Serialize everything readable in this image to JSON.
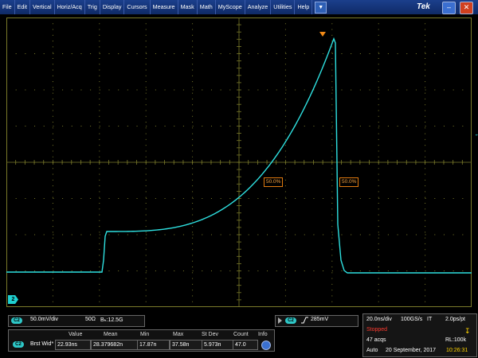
{
  "menu": {
    "items": [
      "File",
      "Edit",
      "Vertical",
      "Horiz/Acq",
      "Trig",
      "Display",
      "Cursors",
      "Measure",
      "Mask",
      "Math",
      "MyScope",
      "Analyze",
      "Utilities",
      "Help"
    ],
    "dropdown_icon": "chevron-down-icon"
  },
  "brand": "Tek",
  "window_buttons": {
    "minimize": "–",
    "close": "✕"
  },
  "waveform": {
    "color": "#2ee0e0",
    "grid_color": "#7a7a2a",
    "measure_tags": [
      "50.0%",
      "50.0%"
    ],
    "ref_arrow": "←",
    "channel_marker": "2"
  },
  "channel_settings": {
    "badge": "C2",
    "scale": "50.0mV/div",
    "impedance": "50Ω",
    "bandwidth": "Bₕ:12.5G"
  },
  "trigger": {
    "badge": "C2",
    "slope_icon": "rising-edge-icon",
    "level": "285mV"
  },
  "measurements": {
    "headers": [
      "Value",
      "Mean",
      "Min",
      "Max",
      "St Dev",
      "Count",
      "Info"
    ],
    "rows": [
      {
        "badge": "C2",
        "name": "Brst Wid*",
        "value": "22.93ns",
        "mean": "28.379682n",
        "min": "17.87n",
        "max": "37.58n",
        "stdev": "5.973n",
        "count": "47.0"
      }
    ]
  },
  "acquisition": {
    "timebase": "20.0ns/div",
    "sample_rate": "100GS/s",
    "mode": "IT",
    "resolution": "2.0ps/pt",
    "state": "Stopped",
    "acqs": "47 acqs",
    "record_length": "RL:100k",
    "trigger_mode": "Auto",
    "date": "20 September, 2017",
    "time": "10:26:31"
  },
  "colors": {
    "accent": "#2ee0e0",
    "stopped": "#ff3b30",
    "trigger": "#f28a16",
    "time": "#ffd400"
  }
}
